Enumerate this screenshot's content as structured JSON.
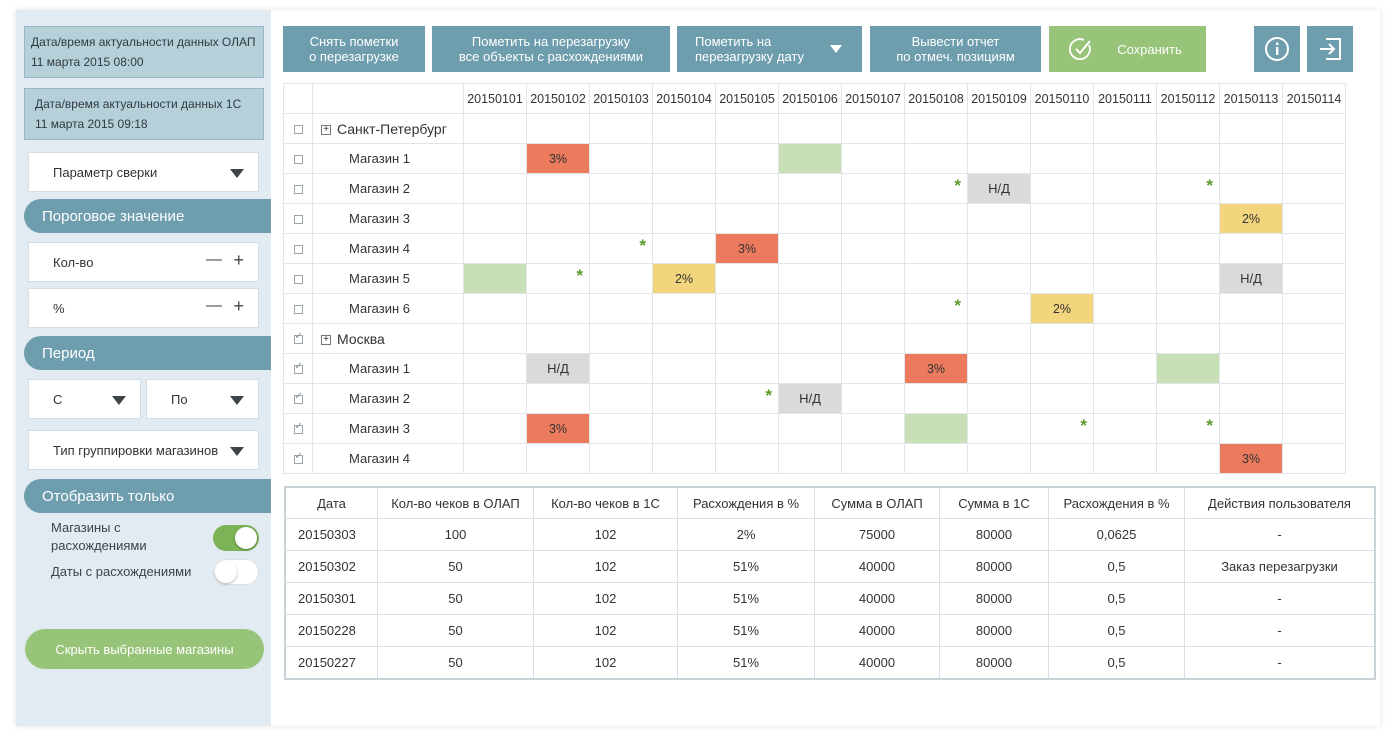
{
  "sidebar": {
    "olap_info": {
      "label": "Дата/время актуальности данных ОЛАП",
      "value": "11 марта 2015 08:00"
    },
    "c1_info": {
      "label": "Дата/время актуальности данных 1С",
      "value": "11 марта 2015 09:18"
    },
    "param_select": "Параметр сверки",
    "threshold_header": "Пороговое значение",
    "qty_label": "Кол-во",
    "percent_label": "%",
    "minus": "—",
    "plus": "+",
    "period_header": "Период",
    "from_select": "С",
    "to_select": "По",
    "grouping_select": "Тип группировки магазинов",
    "show_only_header": "Отобразить только",
    "toggle_stores_label": "Магазины с расхождениями",
    "toggle_stores_on": true,
    "toggle_dates_label": "Даты с расхождениями",
    "toggle_dates_on": false,
    "hide_button": "Скрыть выбранные магазины"
  },
  "toolbar": {
    "unmark_line1": "Снять пометки",
    "unmark_line2": "о перезагрузке",
    "mark_all_line1": "Пометить на перезагрузку",
    "mark_all_line2": "все объекты с расхождениями",
    "mark_date_line1": "Пометить на",
    "mark_date_line2": "перезагрузку дату",
    "report_line1": "Вывести отчет",
    "report_line2": "по отмеч. позициям",
    "save": "Сохранить"
  },
  "grid": {
    "dates": [
      "20150101",
      "20150102",
      "20150103",
      "20150104",
      "20150105",
      "20150106",
      "20150107",
      "20150108",
      "20150109",
      "20150110",
      "20150111",
      "20150112",
      "20150113",
      "20150114"
    ],
    "rows": [
      {
        "type": "region",
        "name": "Санкт-Петербург",
        "checked": false,
        "cells": []
      },
      {
        "type": "store",
        "name": "Магазин 1",
        "checked": false,
        "cells": [
          {
            "col": 1,
            "kind": "red",
            "text": "3%"
          },
          {
            "col": 5,
            "kind": "green",
            "text": ""
          }
        ]
      },
      {
        "type": "store",
        "name": "Магазин 2",
        "checked": false,
        "cells": [
          {
            "col": 7,
            "kind": "star",
            "text": "*"
          },
          {
            "col": 8,
            "kind": "gray",
            "text": "Н/Д"
          },
          {
            "col": 11,
            "kind": "star",
            "text": "*"
          }
        ]
      },
      {
        "type": "store",
        "name": "Магазин 3",
        "checked": false,
        "cells": [
          {
            "col": 12,
            "kind": "yellow",
            "text": "2%"
          }
        ]
      },
      {
        "type": "store",
        "name": "Магазин 4",
        "checked": false,
        "cells": [
          {
            "col": 2,
            "kind": "star",
            "text": "*"
          },
          {
            "col": 4,
            "kind": "red",
            "text": "3%"
          }
        ]
      },
      {
        "type": "store",
        "name": "Магазин 5",
        "checked": false,
        "cells": [
          {
            "col": 0,
            "kind": "green",
            "text": ""
          },
          {
            "col": 1,
            "kind": "star",
            "text": "*"
          },
          {
            "col": 3,
            "kind": "yellow",
            "text": "2%"
          },
          {
            "col": 12,
            "kind": "gray",
            "text": "Н/Д"
          }
        ]
      },
      {
        "type": "store",
        "name": "Магазин 6",
        "checked": false,
        "cells": [
          {
            "col": 7,
            "kind": "star",
            "text": "*"
          },
          {
            "col": 9,
            "kind": "yellow",
            "text": "2%"
          }
        ]
      },
      {
        "type": "region",
        "name": "Москва",
        "checked": true,
        "cells": []
      },
      {
        "type": "store",
        "name": "Магазин 1",
        "checked": true,
        "cells": [
          {
            "col": 1,
            "kind": "gray",
            "text": "Н/Д"
          },
          {
            "col": 7,
            "kind": "red",
            "text": "3%"
          },
          {
            "col": 11,
            "kind": "green",
            "text": ""
          }
        ]
      },
      {
        "type": "store",
        "name": "Магазин 2",
        "checked": true,
        "cells": [
          {
            "col": 4,
            "kind": "star",
            "text": "*"
          },
          {
            "col": 5,
            "kind": "gray",
            "text": "Н/Д"
          }
        ]
      },
      {
        "type": "store",
        "name": "Магазин 3",
        "checked": true,
        "cells": [
          {
            "col": 1,
            "kind": "red",
            "text": "3%"
          },
          {
            "col": 7,
            "kind": "green",
            "text": ""
          },
          {
            "col": 9,
            "kind": "star",
            "text": "*"
          },
          {
            "col": 11,
            "kind": "star",
            "text": "*"
          }
        ]
      },
      {
        "type": "store",
        "name": "Магазин 4",
        "checked": true,
        "cells": [
          {
            "col": 12,
            "kind": "red",
            "text": "3%"
          }
        ]
      }
    ]
  },
  "details": {
    "headers": [
      "Дата",
      "Кол-во чеков в ОЛАП",
      "Кол-во чеков в 1С",
      "Расхождения в %",
      "Сумма в ОЛАП",
      "Сумма в 1С",
      "Расхождения в %",
      "Действия пользователя"
    ],
    "rows": [
      [
        "20150303",
        "100",
        "102",
        "2%",
        "75000",
        "80000",
        "0,0625",
        "-"
      ],
      [
        "20150302",
        "50",
        "102",
        "51%",
        "40000",
        "80000",
        "0,5",
        "Заказ перезагрузки"
      ],
      [
        "20150301",
        "50",
        "102",
        "51%",
        "40000",
        "80000",
        "0,5",
        "-"
      ],
      [
        "20150228",
        "50",
        "102",
        "51%",
        "40000",
        "80000",
        "0,5",
        "-"
      ],
      [
        "20150227",
        "50",
        "102",
        "51%",
        "40000",
        "80000",
        "0,5",
        "-"
      ]
    ]
  },
  "colors": {
    "accent": "#6e9eae",
    "green": "#97c478",
    "red": "#ec7a5c",
    "yellow": "#f3d57d",
    "gray": "#d9dadb",
    "light_green": "#c7e0b5"
  }
}
